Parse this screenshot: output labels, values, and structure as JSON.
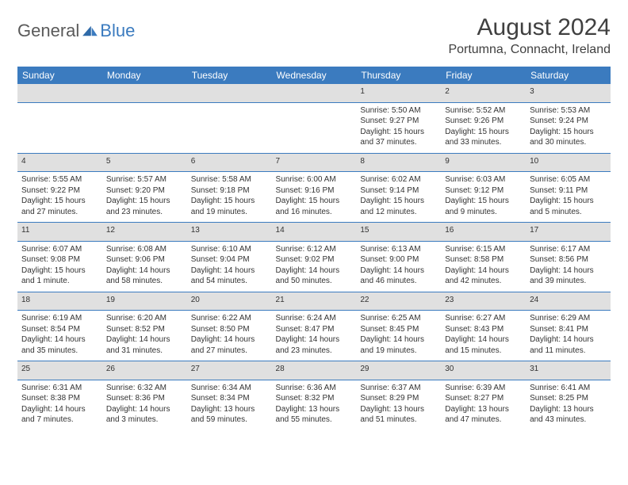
{
  "logo": {
    "part1": "General",
    "part2": "Blue"
  },
  "title": "August 2024",
  "location": "Portumna, Connacht, Ireland",
  "colors": {
    "header_bg": "#3b7bbf",
    "header_text": "#ffffff",
    "date_row_bg": "#e0e0e0",
    "cell_border": "#3b7bbf",
    "body_text": "#333333",
    "title_text": "#404040",
    "logo_gray": "#5a5a5a",
    "logo_blue": "#3b7bbf"
  },
  "dayNames": [
    "Sunday",
    "Monday",
    "Tuesday",
    "Wednesday",
    "Thursday",
    "Friday",
    "Saturday"
  ],
  "weeks": [
    {
      "dates": [
        "",
        "",
        "",
        "",
        "1",
        "2",
        "3"
      ],
      "data": [
        null,
        null,
        null,
        null,
        {
          "sunrise": "5:50 AM",
          "sunset": "9:27 PM",
          "daylight": "15 hours and 37 minutes."
        },
        {
          "sunrise": "5:52 AM",
          "sunset": "9:26 PM",
          "daylight": "15 hours and 33 minutes."
        },
        {
          "sunrise": "5:53 AM",
          "sunset": "9:24 PM",
          "daylight": "15 hours and 30 minutes."
        }
      ]
    },
    {
      "dates": [
        "4",
        "5",
        "6",
        "7",
        "8",
        "9",
        "10"
      ],
      "data": [
        {
          "sunrise": "5:55 AM",
          "sunset": "9:22 PM",
          "daylight": "15 hours and 27 minutes."
        },
        {
          "sunrise": "5:57 AM",
          "sunset": "9:20 PM",
          "daylight": "15 hours and 23 minutes."
        },
        {
          "sunrise": "5:58 AM",
          "sunset": "9:18 PM",
          "daylight": "15 hours and 19 minutes."
        },
        {
          "sunrise": "6:00 AM",
          "sunset": "9:16 PM",
          "daylight": "15 hours and 16 minutes."
        },
        {
          "sunrise": "6:02 AM",
          "sunset": "9:14 PM",
          "daylight": "15 hours and 12 minutes."
        },
        {
          "sunrise": "6:03 AM",
          "sunset": "9:12 PM",
          "daylight": "15 hours and 9 minutes."
        },
        {
          "sunrise": "6:05 AM",
          "sunset": "9:11 PM",
          "daylight": "15 hours and 5 minutes."
        }
      ]
    },
    {
      "dates": [
        "11",
        "12",
        "13",
        "14",
        "15",
        "16",
        "17"
      ],
      "data": [
        {
          "sunrise": "6:07 AM",
          "sunset": "9:08 PM",
          "daylight": "15 hours and 1 minute."
        },
        {
          "sunrise": "6:08 AM",
          "sunset": "9:06 PM",
          "daylight": "14 hours and 58 minutes."
        },
        {
          "sunrise": "6:10 AM",
          "sunset": "9:04 PM",
          "daylight": "14 hours and 54 minutes."
        },
        {
          "sunrise": "6:12 AM",
          "sunset": "9:02 PM",
          "daylight": "14 hours and 50 minutes."
        },
        {
          "sunrise": "6:13 AM",
          "sunset": "9:00 PM",
          "daylight": "14 hours and 46 minutes."
        },
        {
          "sunrise": "6:15 AM",
          "sunset": "8:58 PM",
          "daylight": "14 hours and 42 minutes."
        },
        {
          "sunrise": "6:17 AM",
          "sunset": "8:56 PM",
          "daylight": "14 hours and 39 minutes."
        }
      ]
    },
    {
      "dates": [
        "18",
        "19",
        "20",
        "21",
        "22",
        "23",
        "24"
      ],
      "data": [
        {
          "sunrise": "6:19 AM",
          "sunset": "8:54 PM",
          "daylight": "14 hours and 35 minutes."
        },
        {
          "sunrise": "6:20 AM",
          "sunset": "8:52 PM",
          "daylight": "14 hours and 31 minutes."
        },
        {
          "sunrise": "6:22 AM",
          "sunset": "8:50 PM",
          "daylight": "14 hours and 27 minutes."
        },
        {
          "sunrise": "6:24 AM",
          "sunset": "8:47 PM",
          "daylight": "14 hours and 23 minutes."
        },
        {
          "sunrise": "6:25 AM",
          "sunset": "8:45 PM",
          "daylight": "14 hours and 19 minutes."
        },
        {
          "sunrise": "6:27 AM",
          "sunset": "8:43 PM",
          "daylight": "14 hours and 15 minutes."
        },
        {
          "sunrise": "6:29 AM",
          "sunset": "8:41 PM",
          "daylight": "14 hours and 11 minutes."
        }
      ]
    },
    {
      "dates": [
        "25",
        "26",
        "27",
        "28",
        "29",
        "30",
        "31"
      ],
      "data": [
        {
          "sunrise": "6:31 AM",
          "sunset": "8:38 PM",
          "daylight": "14 hours and 7 minutes."
        },
        {
          "sunrise": "6:32 AM",
          "sunset": "8:36 PM",
          "daylight": "14 hours and 3 minutes."
        },
        {
          "sunrise": "6:34 AM",
          "sunset": "8:34 PM",
          "daylight": "13 hours and 59 minutes."
        },
        {
          "sunrise": "6:36 AM",
          "sunset": "8:32 PM",
          "daylight": "13 hours and 55 minutes."
        },
        {
          "sunrise": "6:37 AM",
          "sunset": "8:29 PM",
          "daylight": "13 hours and 51 minutes."
        },
        {
          "sunrise": "6:39 AM",
          "sunset": "8:27 PM",
          "daylight": "13 hours and 47 minutes."
        },
        {
          "sunrise": "6:41 AM",
          "sunset": "8:25 PM",
          "daylight": "13 hours and 43 minutes."
        }
      ]
    }
  ],
  "labels": {
    "sunrise": "Sunrise:",
    "sunset": "Sunset:",
    "daylight": "Daylight:"
  }
}
